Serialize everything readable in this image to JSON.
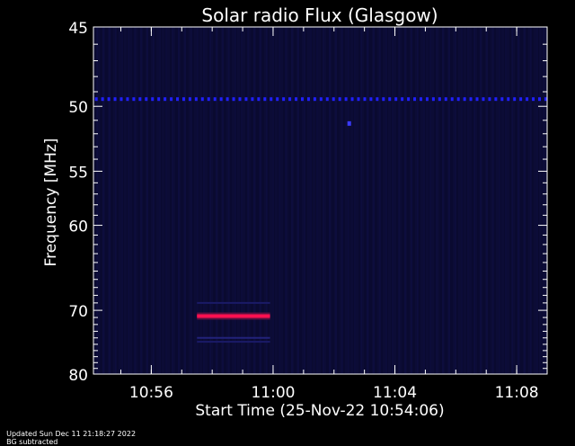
{
  "chart_data": {
    "type": "heatmap",
    "title": "Solar radio Flux (Glasgow)",
    "xlabel": "Start Time (25-Nov-22 10:54:06)",
    "ylabel": "Frequency [MHz]",
    "x_ticks": [
      "10:56",
      "11:00",
      "11:04",
      "11:08"
    ],
    "x_tick_minutes": [
      1.9,
      5.9,
      9.9,
      13.9
    ],
    "x_range_minutes": [
      0,
      14.9
    ],
    "y_ticks": [
      45,
      50,
      55,
      60,
      70,
      80
    ],
    "y_range": [
      45,
      80
    ],
    "y_scale": "reciprocal",
    "background": "#0a0a2e",
    "features": [
      {
        "name": "dotted-band",
        "freq": 49.5,
        "x_start": 0,
        "x_end": 14.9,
        "color": "#2020ff"
      },
      {
        "name": "spot",
        "freq": 51.2,
        "x": 8.4,
        "color": "#3a3aff"
      },
      {
        "name": "bright-line",
        "freq": 70.8,
        "x_start": 3.4,
        "x_end": 5.8,
        "color": "#ff1050"
      },
      {
        "name": "faint-line-upper",
        "freq": 69.0,
        "x_start": 3.4,
        "x_end": 5.8,
        "color": "#1a1a66"
      },
      {
        "name": "faint-line-lower",
        "freq": 74.0,
        "x_start": 3.4,
        "x_end": 5.8,
        "color": "#22227a"
      },
      {
        "name": "faint-line-lower2",
        "freq": 74.6,
        "x_start": 3.4,
        "x_end": 5.8,
        "color": "#1a1a66"
      }
    ]
  },
  "footer": {
    "updated": "Updated Sun Dec 11 21:18:27 2022",
    "note": "BG subtracted"
  }
}
